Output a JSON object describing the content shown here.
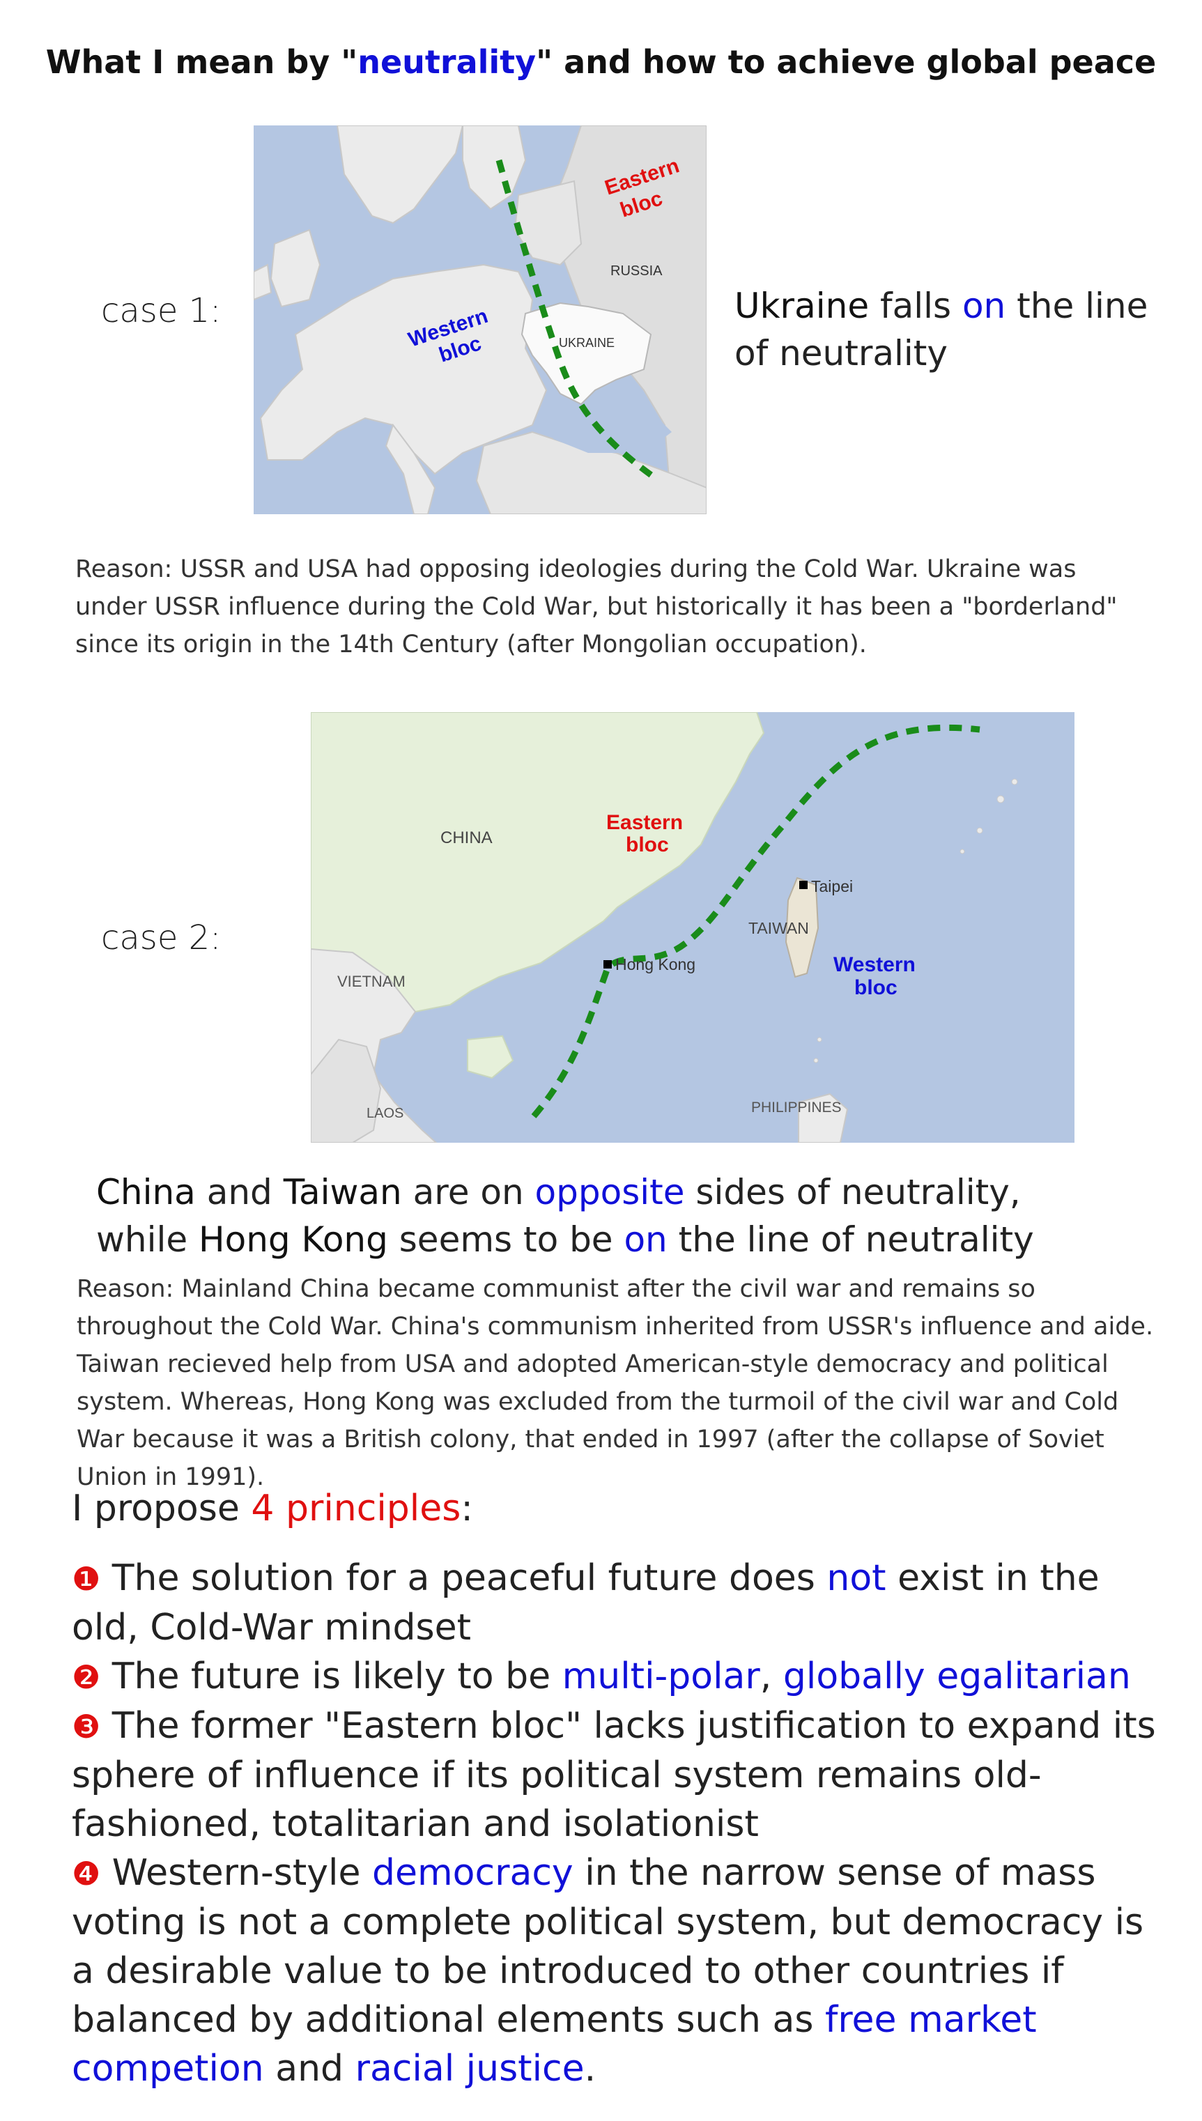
{
  "title": {
    "before": "What I mean by \"",
    "highlight": "neutrality",
    "after": "\" and how to achieve global peace"
  },
  "case1": {
    "label": "case 1:",
    "map": {
      "eastern_label": [
        "Eastern",
        "bloc"
      ],
      "western_label": [
        "Western",
        "bloc"
      ],
      "russia": "RUSSIA",
      "ukraine": "UKRAINE"
    },
    "statement": {
      "subject": "Ukraine",
      "text1": " falls ",
      "highlight": "on",
      "text2": " the line of neutrality"
    },
    "reason": "Reason: USSR and USA had opposing ideologies during the Cold War.  Ukraine was under USSR influence during the Cold War, but historically it has been a \"borderland\" since its origin in the 14th Century (after Mongolian occupation)."
  },
  "case2": {
    "label": "case 2:",
    "map": {
      "china": "CHINA",
      "eastern_label": [
        "Eastern",
        "bloc"
      ],
      "taipei": "Taipei",
      "taiwan": "TAIWAN",
      "hong_kong": "Hong Kong",
      "western_label": [
        "Western",
        "bloc"
      ],
      "vietnam": "VIETNAM",
      "philippines": "PHILIPPINES",
      "laos": "LAOS"
    },
    "statement": {
      "china": "China",
      "and": " and ",
      "taiwan": "Taiwan",
      "are_on": " are on ",
      "opposite": "opposite",
      "sides": " sides of neutrality,",
      "while": "while ",
      "hong_kong": "Hong Kong",
      "seems": " seems to be ",
      "on": "on",
      "line": " the line of neutrality"
    },
    "reason": "Reason: Mainland China became communist after the civil war and remains so throughout the Cold War.  China's communism inherited from USSR's influence and aide.  Taiwan recieved help from USA and adopted American-style democracy and political system.  Whereas, Hong Kong was excluded from the turmoil of the civil war and Cold War because it was a British colony, that ended in 1997 (after the collapse of Soviet Union in 1991)."
  },
  "proposal": {
    "lead": "I propose ",
    "highlight": "4 principles",
    "colon": ":"
  },
  "principles": [
    {
      "num": "❶",
      "parts": [
        {
          "t": " The solution for a peaceful future does "
        },
        {
          "t": "not",
          "c": "blue"
        },
        {
          "t": " exist in the old, Cold-War mindset"
        }
      ]
    },
    {
      "num": "❷",
      "parts": [
        {
          "t": " The future is likely to be "
        },
        {
          "t": "multi-polar",
          "c": "blue"
        },
        {
          "t": ", "
        },
        {
          "t": "globally egalitarian",
          "c": "blue"
        }
      ]
    },
    {
      "num": "❸",
      "parts": [
        {
          "t": " The former \"Eastern bloc\" lacks justification to expand its sphere of influence if its political system remains old-fashioned, totalitarian and isolationist"
        }
      ]
    },
    {
      "num": "❹",
      "parts": [
        {
          "t": " Western-style "
        },
        {
          "t": "democracy",
          "c": "blue"
        },
        {
          "t": " in the narrow sense of mass voting is not a complete political system, but democracy is a desirable value to be introduced to other countries if balanced by additional elements such as "
        },
        {
          "t": "free market competion",
          "c": "blue"
        },
        {
          "t": " and "
        },
        {
          "t": "racial justice",
          "c": "blue"
        },
        {
          "t": "."
        }
      ]
    }
  ],
  "colors": {
    "highlight_blue": "#1010d8",
    "highlight_red": "#e01010",
    "neutral_line": "#1a8c1a",
    "sea": "#b4c6e2",
    "land_gray": "#e6e6e6",
    "land_green": "#e6f0da"
  }
}
